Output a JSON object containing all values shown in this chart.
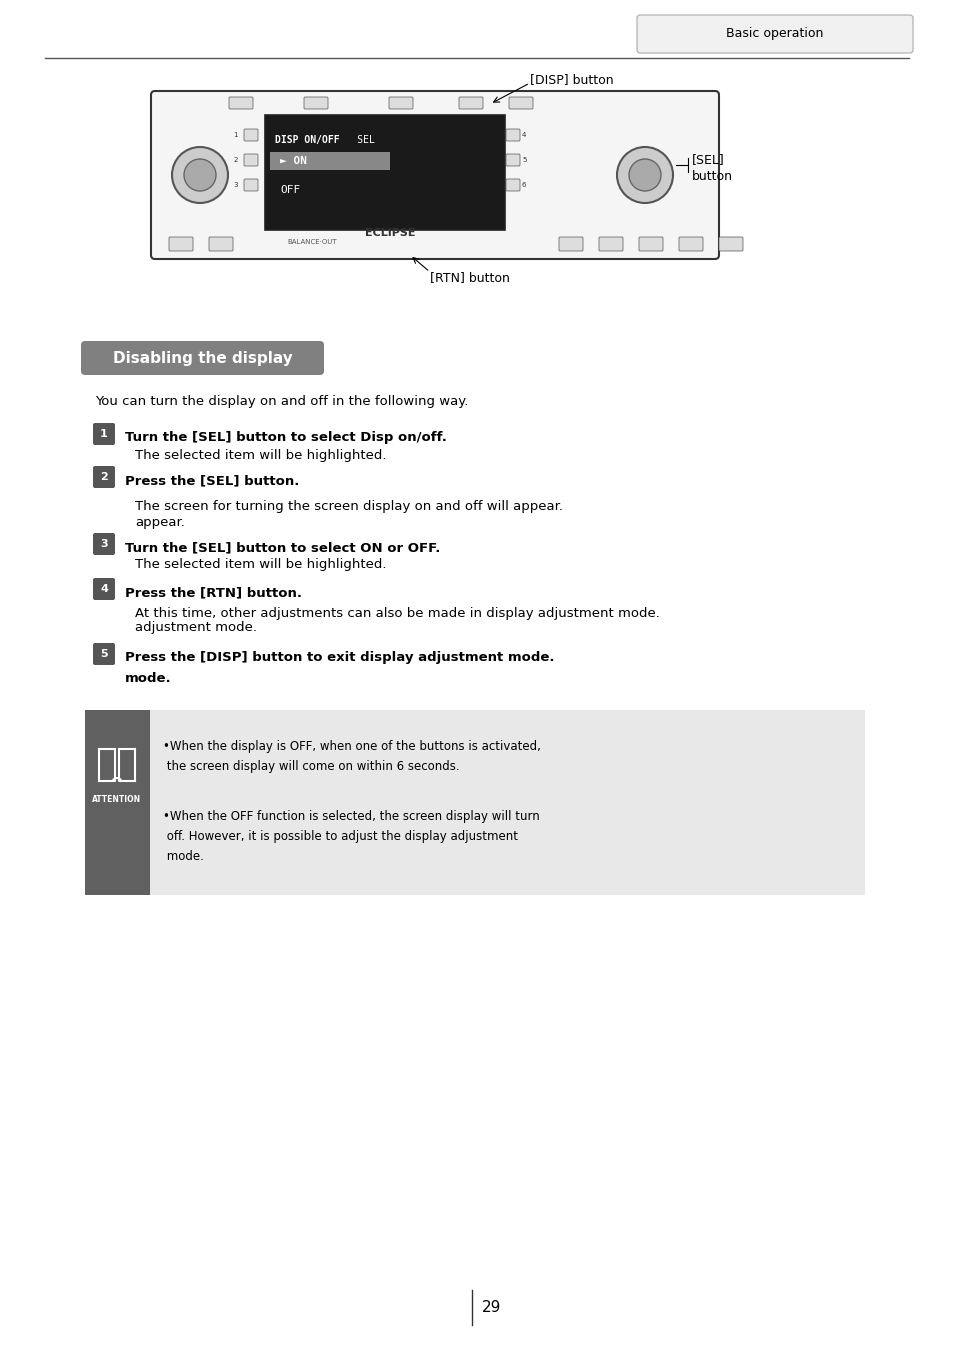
{
  "page_bg": "#ffffff",
  "header_tab_text": "Basic operation",
  "header_tab_bg": "#f0f0f0",
  "header_tab_border": "#aaaaaa",
  "header_line_color": "#555555",
  "section_title": "Disabling the display",
  "section_title_bg": "#808080",
  "section_title_color": "#ffffff",
  "intro_text": "You can turn the display on and off in the following way.",
  "steps": [
    {
      "num": "1",
      "bold_text": "Turn the [SEL] button to select Disp on/off.",
      "normal_text": "The selected item will be highlighted."
    },
    {
      "num": "2",
      "bold_text": "Press the [SEL] button.",
      "normal_text": "The screen for turning the screen display on and off will appear."
    },
    {
      "num": "3",
      "bold_text": "Turn the [SEL] button to select ON or OFF.",
      "normal_text": "The selected item will be highlighted."
    },
    {
      "num": "4",
      "bold_text": "Press the [RTN] button.",
      "normal_text": "At this time, other adjustments can also be made in display adjustment mode."
    },
    {
      "num": "5",
      "bold_text": "Press the [DISP] button to exit display adjustment mode.",
      "normal_text": ""
    }
  ],
  "attention_bg": "#e8e8e8",
  "attention_icon_bg": "#606060",
  "attention_bullets": [
    "When the display is OFF, when one of the buttons is activated, the screen display will come on within 6 seconds.",
    "When the OFF function is selected, the screen display will turn off. However, it is possible to adjust the display adjustment mode."
  ],
  "page_number": "29",
  "disp_label": "[DISP] button",
  "sel_label": "[SEL]\nbutton",
  "rtn_label": "[RTN] button"
}
